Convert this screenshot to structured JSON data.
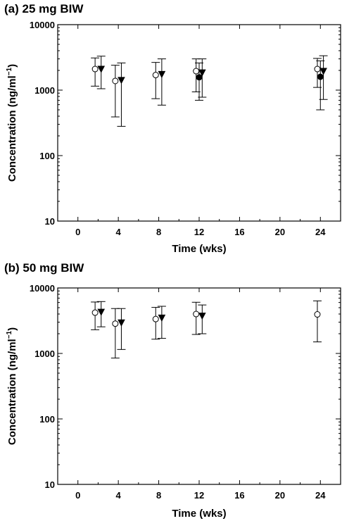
{
  "chart_data": [
    {
      "type": "scatter",
      "title": "(a)  25 mg BIW",
      "xlabel": "Time (wks)",
      "ylabel": "Concentration (ng/ml",
      "ylabel_sup": "−1",
      "ylabel_close": ")",
      "xlim": [
        -2,
        26
      ],
      "ylim": [
        10,
        10000
      ],
      "yscale": "log",
      "xticks": [
        0,
        4,
        8,
        12,
        16,
        20,
        24
      ],
      "yticks": [
        10,
        100,
        1000,
        10000
      ],
      "series": [
        {
          "marker": "open-circle",
          "points": [
            {
              "x": 1.7,
              "y": 2100,
              "ylow": 1150,
              "yhigh": 3100
            },
            {
              "x": 3.7,
              "y": 1380,
              "ylow": 390,
              "yhigh": 2400
            },
            {
              "x": 7.7,
              "y": 1700,
              "ylow": 740,
              "yhigh": 2650
            },
            {
              "x": 11.7,
              "y": 1950,
              "ylow": 940,
              "yhigh": 3000
            },
            {
              "x": 23.7,
              "y": 2100,
              "ylow": 1100,
              "yhigh": 3050
            }
          ]
        },
        {
          "marker": "filled-triangle-down",
          "points": [
            {
              "x": 2.3,
              "y": 2100,
              "ylow": 1050,
              "yhigh": 3300
            },
            {
              "x": 4.3,
              "y": 1420,
              "ylow": 280,
              "yhigh": 2600
            },
            {
              "x": 8.3,
              "y": 1750,
              "ylow": 590,
              "yhigh": 3000
            },
            {
              "x": 12.3,
              "y": 1850,
              "ylow": 780,
              "yhigh": 3000
            },
            {
              "x": 24.3,
              "y": 1950,
              "ylow": 720,
              "yhigh": 3350
            }
          ]
        },
        {
          "marker": "filled-circle",
          "points": [
            {
              "x": 12.0,
              "y": 1570,
              "ylow": 700,
              "yhigh": 2600
            },
            {
              "x": 24.0,
              "y": 1600,
              "ylow": 500,
              "yhigh": 2800
            }
          ]
        }
      ]
    },
    {
      "type": "scatter",
      "title": "(b)  50 mg BIW",
      "xlabel": "Time (wks)",
      "ylabel": "Concentration (ng/ml",
      "ylabel_sup": "−1",
      "ylabel_close": ")",
      "xlim": [
        -2,
        26
      ],
      "ylim": [
        10,
        10000
      ],
      "yscale": "log",
      "xticks": [
        0,
        4,
        8,
        12,
        16,
        20,
        24
      ],
      "yticks": [
        10,
        100,
        1000,
        10000
      ],
      "series": [
        {
          "marker": "open-circle",
          "points": [
            {
              "x": 1.7,
              "y": 4200,
              "ylow": 2300,
              "yhigh": 6100
            },
            {
              "x": 3.7,
              "y": 2850,
              "ylow": 850,
              "yhigh": 4850
            },
            {
              "x": 7.7,
              "y": 3350,
              "ylow": 1650,
              "yhigh": 5050
            },
            {
              "x": 11.7,
              "y": 4000,
              "ylow": 1950,
              "yhigh": 6050
            },
            {
              "x": 23.7,
              "y": 3950,
              "ylow": 1500,
              "yhigh": 6350
            }
          ]
        },
        {
          "marker": "filled-triangle-down",
          "points": [
            {
              "x": 2.3,
              "y": 4300,
              "ylow": 2550,
              "yhigh": 6200
            },
            {
              "x": 4.3,
              "y": 2950,
              "ylow": 1150,
              "yhigh": 4850
            },
            {
              "x": 8.3,
              "y": 3500,
              "ylow": 1700,
              "yhigh": 5250
            },
            {
              "x": 12.3,
              "y": 3750,
              "ylow": 2000,
              "yhigh": 5500
            }
          ]
        }
      ]
    }
  ]
}
